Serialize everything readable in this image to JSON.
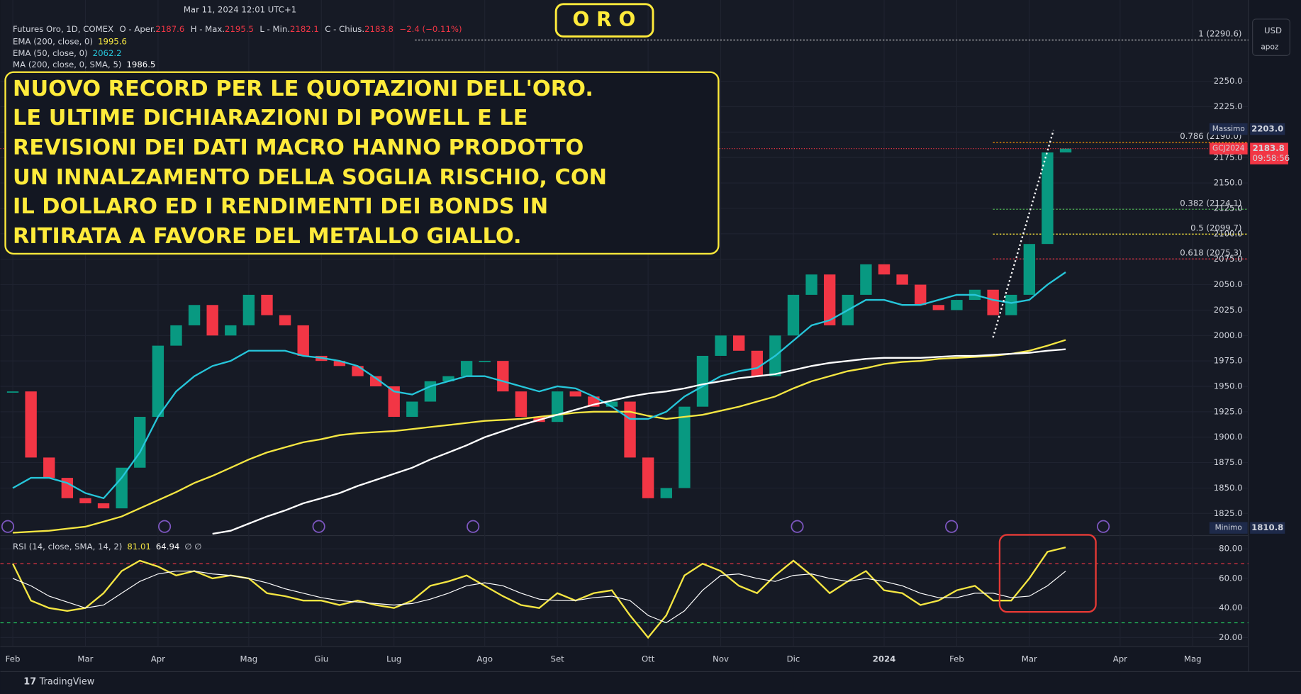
{
  "header": {
    "datetime": "Mar 11, 2024 12:01 UTC+1",
    "title": "O R O"
  },
  "legend": {
    "instrument": "Futures Oro, 1D, COMEX",
    "open_label": "O - Aper.",
    "open": 2187.6,
    "high_label": "H - Max.",
    "high": 2195.5,
    "low_label": "L - Min.",
    "low": 2182.1,
    "close_label": "C - Chius.",
    "change": "−2.4 (−0.11%)"
  },
  "annotation": [
    "NUOVO RECORD PER LE QUOTAZIONI DELL'ORO.",
    "LE ULTIME DICHIARAZIONI DI POWELL E LE",
    "REVISIONI DEI DATI MACRO HANNO PRODOTTO",
    "UN INNALZAMENTO DELLA SOGLIA RISCHIO, CON",
    "IL DOLLARO ED I RENDIMENTI DEI BONDS IN",
    "RITIRATA A FAVORE DEL METALLO GIALLO."
  ],
  "toolbar": {
    "currency": "USD",
    "user": "apoz"
  },
  "brand": "TradingView",
  "chart_data": {
    "type": "candlestick",
    "categories": [
      "Feb",
      null,
      null,
      null,
      "Mar",
      null,
      null,
      null,
      "Apr",
      null,
      null,
      null,
      null,
      "Mag",
      null,
      null,
      null,
      "Giu",
      null,
      null,
      null,
      "Lug",
      null,
      null,
      null,
      null,
      "Ago",
      null,
      null,
      null,
      "Set",
      null,
      null,
      null,
      null,
      "Ott",
      null,
      null,
      null,
      "Nov",
      null,
      null,
      null,
      "Dic",
      null,
      null,
      null,
      null,
      "2024",
      null,
      null,
      null,
      "Feb",
      null,
      null,
      null,
      "Mar",
      null,
      null,
      null,
      null,
      "Apr",
      null,
      null,
      null,
      "Mag",
      null,
      null,
      null
    ],
    "close": {
      "up_color": "#089981",
      "down_color": "#f23645",
      "values": [
        1945,
        1880,
        1860,
        1840,
        1835,
        1830,
        1870,
        1920,
        1990,
        2010,
        2030,
        2000,
        2010,
        2040,
        2020,
        2010,
        1980,
        1975,
        1970,
        1960,
        1950,
        1920,
        1935,
        1955,
        1960,
        1975,
        1975,
        1945,
        1920,
        1915,
        1945,
        1940,
        1930,
        1935,
        1880,
        1840,
        1850,
        1930,
        1980,
        2000,
        1985,
        1960,
        2000,
        2040,
        2060,
        2010,
        2040,
        2070,
        2060,
        2050,
        2030,
        2025,
        2035,
        2045,
        2020,
        2040,
        2090,
        2180,
        2183.8,
        null,
        null,
        null,
        null,
        null,
        null,
        null,
        null,
        null,
        null
      ]
    },
    "series": [
      {
        "name": "EMA (200, close, 0)",
        "color": "#f5e642",
        "values": [
          1806,
          1807,
          1808,
          1810,
          1812,
          1817,
          1822,
          1830,
          1838,
          1846,
          1855,
          1862,
          1870,
          1878,
          1885,
          1890,
          1895,
          1898,
          1902,
          1904,
          1905,
          1906,
          1908,
          1910,
          1912,
          1914,
          1916,
          1917,
          1918,
          1920,
          1922,
          1924,
          1925,
          1925,
          1925,
          1921,
          1918,
          1920,
          1922,
          1926,
          1930,
          1935,
          1940,
          1948,
          1955,
          1960,
          1965,
          1968,
          1972,
          1974,
          1975,
          1977,
          1978,
          1979,
          1980,
          1982,
          1985,
          1990,
          1995.6,
          null,
          null,
          null,
          null,
          null,
          null,
          null,
          null,
          null,
          null
        ]
      },
      {
        "name": "EMA (50, close, 0)",
        "color": "#26c6da",
        "values": [
          1850,
          1860,
          1860,
          1855,
          1845,
          1840,
          1860,
          1885,
          1920,
          1945,
          1960,
          1970,
          1975,
          1985,
          1985,
          1985,
          1980,
          1978,
          1975,
          1970,
          1958,
          1945,
          1942,
          1950,
          1955,
          1960,
          1960,
          1955,
          1950,
          1945,
          1950,
          1948,
          1940,
          1930,
          1918,
          1918,
          1925,
          1940,
          1950,
          1960,
          1965,
          1968,
          1980,
          1995,
          2010,
          2015,
          2025,
          2035,
          2035,
          2030,
          2030,
          2035,
          2040,
          2040,
          2035,
          2032,
          2035,
          2050,
          2062.2,
          null,
          null,
          null,
          null,
          null,
          null,
          null,
          null,
          null,
          null
        ]
      },
      {
        "name": "MA (200, close, 0, SMA, 5)",
        "color": "#ffffff",
        "values": [
          null,
          null,
          null,
          null,
          null,
          null,
          null,
          null,
          null,
          null,
          null,
          1805,
          1808,
          1815,
          1822,
          1828,
          1835,
          1840,
          1845,
          1852,
          1858,
          1864,
          1870,
          1878,
          1885,
          1892,
          1900,
          1906,
          1912,
          1917,
          1922,
          1927,
          1932,
          1936,
          1940,
          1943,
          1945,
          1948,
          1952,
          1955,
          1958,
          1960,
          1962,
          1966,
          1970,
          1973,
          1975,
          1977,
          1978,
          1978,
          1978,
          1979,
          1980,
          1980,
          1981,
          1982,
          1983,
          1985,
          1986.5,
          null,
          null,
          null,
          null,
          null,
          null,
          null,
          null,
          null,
          null
        ]
      }
    ],
    "ylim": [
      1804,
      2312
    ],
    "yticks": [
      {
        "value": 1825,
        "label": "1825.0"
      },
      {
        "value": 1850,
        "label": "1850.0"
      },
      {
        "value": 1875,
        "label": "1875.0"
      },
      {
        "value": 1900,
        "label": "1900.0"
      },
      {
        "value": 1925,
        "label": "1925.0"
      },
      {
        "value": 1950,
        "label": "1950.0"
      },
      {
        "value": 1975,
        "label": "1975.0"
      },
      {
        "value": 2000,
        "label": "2000.0"
      },
      {
        "value": 2025,
        "label": "2025.0"
      },
      {
        "value": 2050,
        "label": "2050.0"
      },
      {
        "value": 2075,
        "label": "2075.0"
      },
      {
        "value": 2100,
        "label": "2100.0"
      },
      {
        "value": 2125,
        "label": "2125.0"
      },
      {
        "value": 2150,
        "label": "2150.0"
      },
      {
        "value": 2175,
        "label": "2175.0"
      },
      {
        "value": 2200,
        "label": "2200.0"
      },
      {
        "value": 2225,
        "label": "2225.0"
      },
      {
        "value": 2250,
        "label": "2250.0"
      }
    ],
    "grid": true,
    "levels": [
      {
        "value": 2290.6,
        "label": "1 (2290.6)",
        "color": "#e0e0e0"
      },
      {
        "value": 2190,
        "label": "0.786 (2190.0)",
        "color": "#ff9800"
      },
      {
        "value": 2124.1,
        "label": "0.382 (2124.1)",
        "color": "#4caf50"
      },
      {
        "value": 2099.7,
        "label": "0.5 (2099.7)",
        "color": "#ffeb3b"
      },
      {
        "value": 2075.3,
        "label": "0.618 (2075.3)",
        "color": "#f23645"
      }
    ],
    "max": {
      "label": "Massimo",
      "value": {
        "value": 2203,
        "label": "2203.0"
      }
    },
    "min": {
      "label": "Minimo",
      "value": 1810.8
    },
    "last": {
      "label": "GCJ2024",
      "countdown": "09:58:56"
    },
    "rsi": {
      "title": "RSI (14, close, SMA, 14, 2)",
      "extra": "∅ ∅",
      "series": [
        {
          "color": "#f5e642",
          "values": [
            70,
            45,
            40,
            38,
            40,
            50,
            65,
            72,
            68,
            62,
            65,
            60,
            62,
            60,
            50,
            48,
            45,
            45,
            42,
            45,
            42,
            40,
            45,
            55,
            58,
            62,
            55,
            48,
            42,
            40,
            50,
            45,
            50,
            52,
            35,
            20,
            35,
            62,
            70,
            65,
            55,
            50,
            62,
            72,
            62,
            50,
            58,
            65,
            52,
            50,
            42,
            45,
            52,
            55,
            45,
            45,
            60,
            78,
            81.01,
            null,
            null,
            null,
            null,
            null,
            null,
            null,
            null,
            null,
            null
          ]
        },
        {
          "color": "#ffffff",
          "values": [
            60,
            55,
            48,
            44,
            40,
            42,
            50,
            58,
            63,
            65,
            65,
            63,
            62,
            60,
            57,
            53,
            50,
            47,
            45,
            44,
            43,
            42,
            43,
            46,
            50,
            55,
            57,
            55,
            50,
            46,
            45,
            45,
            47,
            48,
            45,
            35,
            30,
            38,
            52,
            62,
            63,
            60,
            58,
            62,
            63,
            60,
            58,
            60,
            58,
            55,
            50,
            47,
            47,
            50,
            50,
            47,
            48,
            55,
            64.94,
            null,
            null,
            null,
            null,
            null,
            null,
            null,
            null,
            null,
            null
          ]
        }
      ],
      "ylim": [
        13.8,
        87.8
      ],
      "yticks": [
        {
          "value": 20,
          "label": "20.00"
        },
        {
          "value": 40,
          "label": "40.00"
        },
        {
          "value": 60,
          "label": "60.00"
        },
        {
          "value": 80,
          "label": "80.00"
        }
      ],
      "bands": [
        {
          "value": 70,
          "color": "#f23645"
        },
        {
          "value": 30,
          "color": "#22c55e"
        }
      ]
    }
  }
}
